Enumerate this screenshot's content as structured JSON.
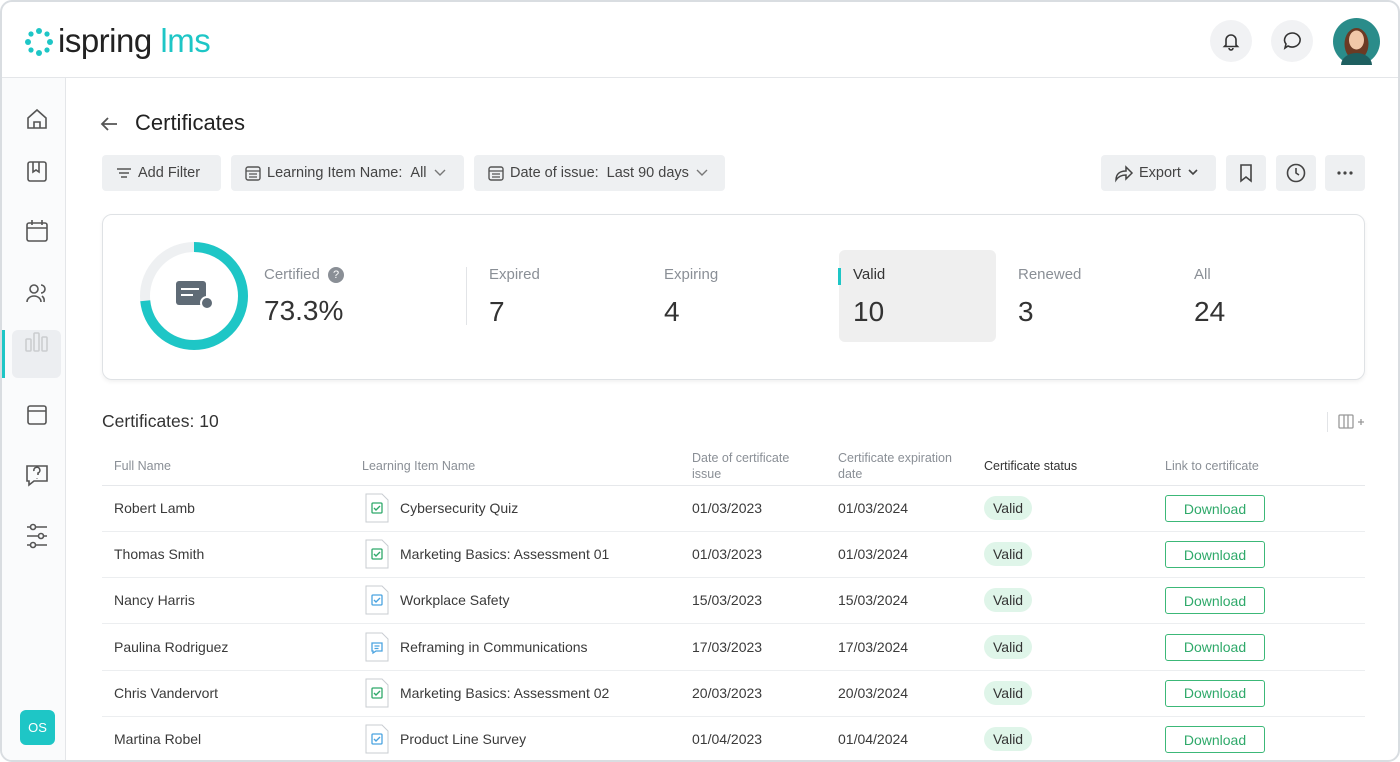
{
  "header": {
    "logo": "ispring",
    "logo_suffix": "lms",
    "user_initials": "OS"
  },
  "page": {
    "title": "Certificates"
  },
  "filters": [
    {
      "label": "Add Filter"
    },
    {
      "label": "Learning Item Name:",
      "value": "All"
    },
    {
      "label": "Date of issue:",
      "value": "Last 90 days"
    }
  ],
  "toolbar": {
    "export": "Export"
  },
  "summary": {
    "certified": {
      "label": "Certified",
      "help": "?",
      "value": "73.3%"
    },
    "stats": [
      {
        "label": "Expired",
        "value": "7"
      },
      {
        "label": "Expiring",
        "value": "4"
      },
      {
        "label": "Valid",
        "value": "10"
      },
      {
        "label": "Renewed",
        "value": "3"
      },
      {
        "label": "All",
        "value": "24"
      }
    ]
  },
  "table": {
    "title": "Certificates: 10",
    "columns": [
      "Full Name",
      "Learning Item Name",
      "Date of certificate issue",
      "Certificate expiration date",
      "Certificate status",
      "Link to certificate"
    ],
    "rows": [
      [
        "Robert Lamb",
        "Cybersecurity Quiz",
        "01/03/2023",
        "01/03/2024",
        "Valid",
        "Download"
      ],
      [
        "Thomas Smith",
        "Marketing Basics: Assessment 01",
        "01/03/2023",
        "01/03/2024",
        "Valid",
        "Download"
      ],
      [
        "Nancy Harris",
        "Workplace Safety",
        "15/03/2023",
        "15/03/2024",
        "Valid",
        "Download"
      ],
      [
        "Paulina Rodriguez",
        "Reframing in Communications",
        "17/03/2023",
        "17/03/2024",
        "Valid",
        "Download"
      ],
      [
        "Chris Vandervort",
        "Marketing Basics: Assessment 02",
        "20/03/2023",
        "20/03/2024",
        "Valid",
        "Download"
      ],
      [
        "Martina Robel",
        "Product Line Survey",
        "01/04/2023",
        "01/04/2024",
        "Valid",
        "Download"
      ]
    ]
  }
}
